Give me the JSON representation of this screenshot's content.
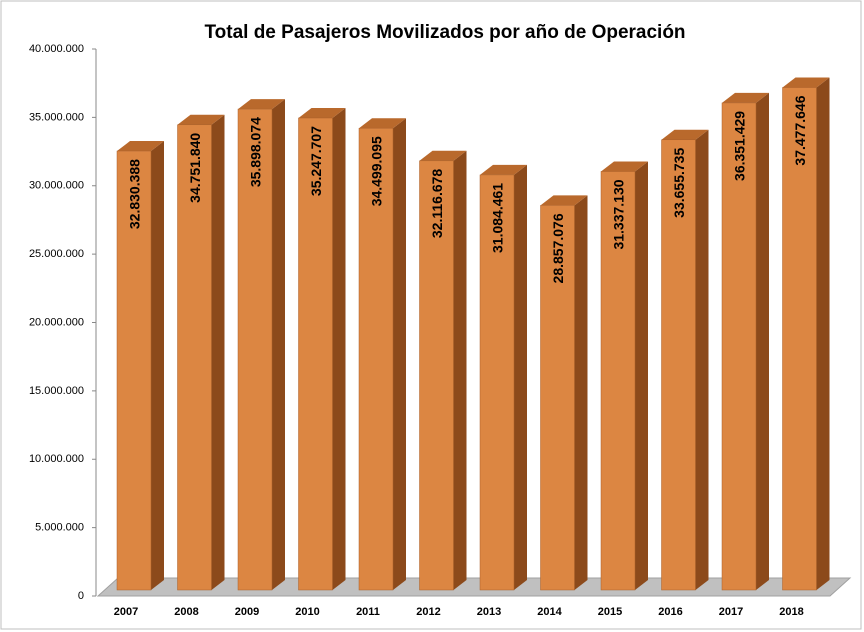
{
  "chart_data": {
    "type": "bar3d",
    "title": "Total de Pasajeros Movilizados por año de Operación",
    "categories": [
      "2007",
      "2008",
      "2009",
      "2010",
      "2011",
      "2012",
      "2013",
      "2014",
      "2015",
      "2016",
      "2017",
      "2018"
    ],
    "values": [
      32830388,
      34751840,
      35898074,
      35247707,
      34499095,
      32116678,
      31084461,
      28857076,
      31337130,
      33655735,
      36351429,
      37477646
    ],
    "value_labels": [
      "32.830.388",
      "34.751.840",
      "35.898.074",
      "35.247.707",
      "34.499.095",
      "32.116.678",
      "31.084.461",
      "28.857.076",
      "31.337.130",
      "33.655.735",
      "36.351.429",
      "37.477.646"
    ],
    "color": "#dc8642",
    "ylim": [
      0,
      40000000
    ],
    "yticks": [
      0,
      {
        "value": 5000000,
        "label": "5.000.000"
      },
      {
        "value": 10000000,
        "label": "10.000.000"
      },
      {
        "value": 15000000,
        "label": "15.000.000"
      },
      {
        "value": 20000000,
        "label": "20.000.000"
      },
      {
        "value": 25000000,
        "label": "25.000.000"
      },
      {
        "value": 30000000,
        "label": "30.000.000"
      },
      {
        "value": 35000000,
        "label": "35.000.000"
      },
      {
        "value": 40000000,
        "label": "40.000.000"
      }
    ],
    "grid": false
  }
}
